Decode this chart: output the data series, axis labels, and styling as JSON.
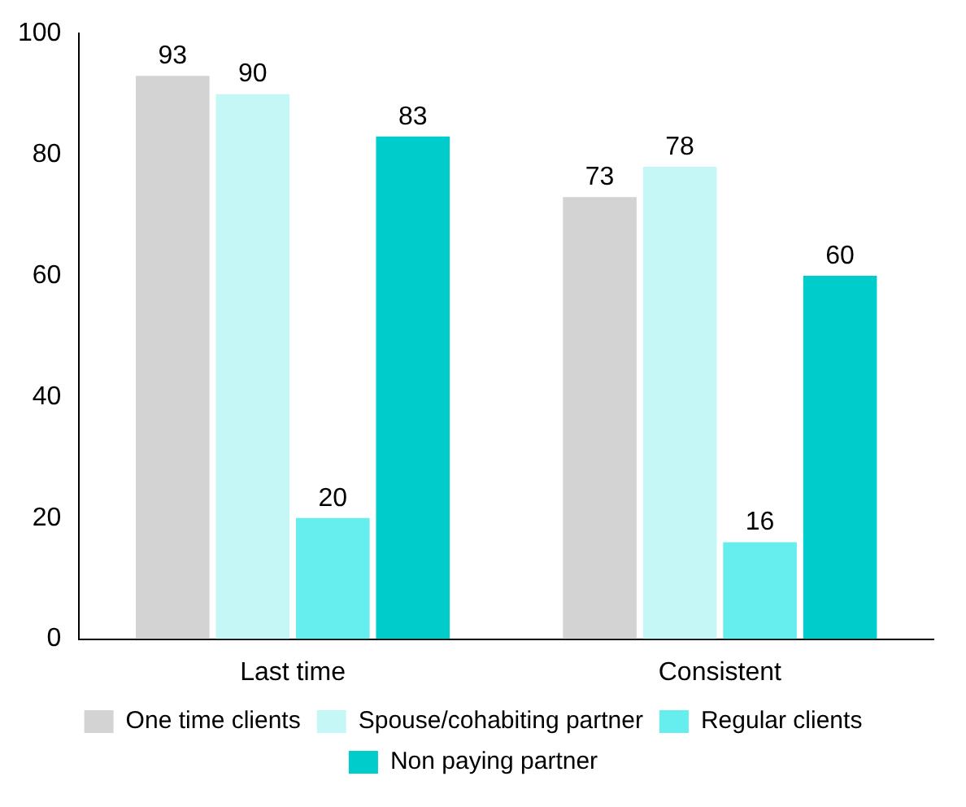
{
  "chart_data": {
    "type": "bar",
    "categories": [
      "Last time",
      "Consistent"
    ],
    "series": [
      {
        "name": "One time clients",
        "color": "#d3d3d3",
        "values": [
          93,
          73
        ]
      },
      {
        "name": "Spouse/cohabiting partner",
        "color": "#c6f7f7",
        "values": [
          90,
          78
        ]
      },
      {
        "name": "Regular clients",
        "color": "#66eeee",
        "values": [
          20,
          16
        ]
      },
      {
        "name": "Non paying partner",
        "color": "#00cccc",
        "values": [
          83,
          60
        ]
      }
    ],
    "ylim": [
      0,
      100
    ],
    "yticks": [
      0,
      20,
      40,
      60,
      80,
      100
    ],
    "grid": false,
    "legend": "bottom",
    "data_labels": true
  }
}
